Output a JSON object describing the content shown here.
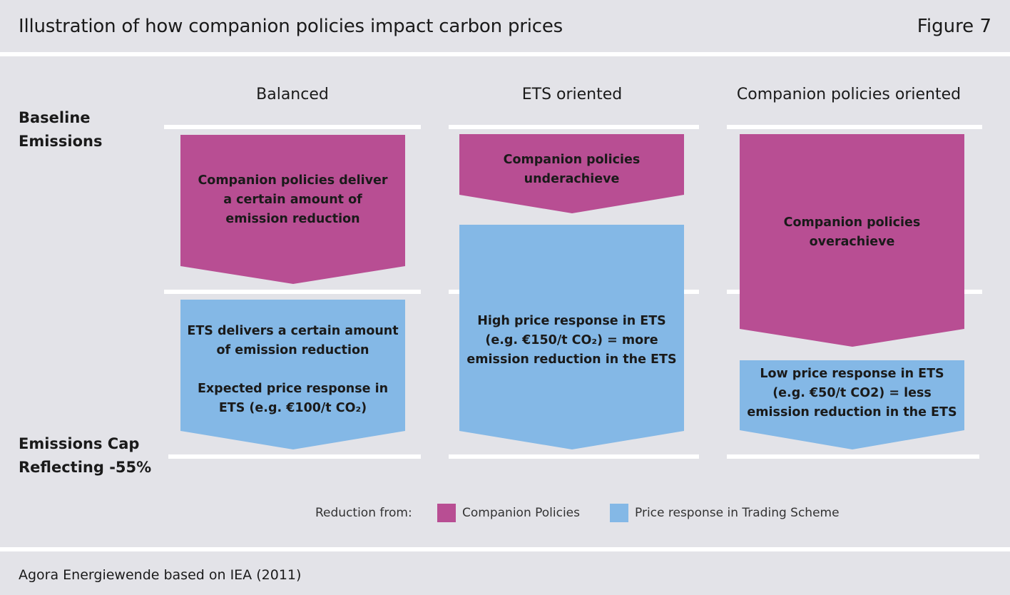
{
  "header": {
    "title": "Illustration of how companion policies impact carbon prices",
    "figure": "Figure 7"
  },
  "side_labels": {
    "baseline": [
      "Baseline",
      "Emissions"
    ],
    "cap": [
      "Emissions Cap",
      "Reflecting -55%"
    ]
  },
  "columns": [
    {
      "title": "Balanced",
      "companion_text": [
        "Companion policies deliver",
        "a certain amount of",
        "emission reduction"
      ],
      "ets_text": [
        "ETS delivers a certain amount",
        "of emission reduction",
        "",
        "Expected price response in",
        "ETS (e.g. €100/t CO₂)"
      ]
    },
    {
      "title": "ETS oriented",
      "companion_text": [
        "Companion policies",
        "underachieve"
      ],
      "ets_text": [
        "High price response in ETS",
        "(e.g. €150/t CO₂) = more",
        "emission reduction in the ETS"
      ]
    },
    {
      "title": "Companion policies oriented",
      "companion_text": [
        "Companion policies",
        "overachieve"
      ],
      "ets_text": [
        "Low price response in ETS",
        "(e.g. €50/t CO2)  = less",
        "emission reduction in the ETS"
      ]
    }
  ],
  "legend": {
    "prefix": "Reduction from:",
    "companion": "Companion Policies",
    "ets": "Price response in Trading Scheme"
  },
  "colors": {
    "companion": "#b84e93",
    "ets": "#84b8e6",
    "background": "#e3e3e8"
  },
  "footer": {
    "source": "Agora Energiewende based on IEA (2011)"
  }
}
